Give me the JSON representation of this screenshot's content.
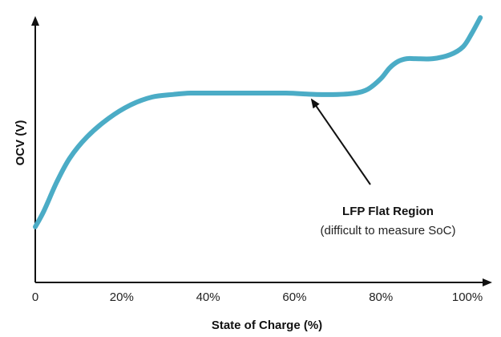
{
  "chart_data": {
    "type": "line",
    "title": "",
    "xlabel": "State of Charge (%)",
    "ylabel": "OCV (V)",
    "xlim": [
      0,
      105
    ],
    "ylim": [
      0,
      100
    ],
    "x_ticks": [
      {
        "value": 0,
        "label": "0"
      },
      {
        "value": 20,
        "label": "20%"
      },
      {
        "value": 40,
        "label": "40%"
      },
      {
        "value": 60,
        "label": "60%"
      },
      {
        "value": 80,
        "label": "80%"
      },
      {
        "value": 100,
        "label": "100%"
      }
    ],
    "y_ticks_shown": false,
    "grid": false,
    "series": [
      {
        "color": "#4bacc6",
        "x": [
          0,
          2,
          5,
          8,
          12,
          17,
          22,
          27,
          32,
          36,
          42,
          50,
          58,
          65,
          70,
          74,
          77,
          80,
          82,
          84,
          86,
          88,
          92,
          96,
          99,
          101,
          103
        ],
        "y": [
          21,
          27,
          38,
          47,
          55,
          62,
          67,
          70,
          71,
          71.5,
          71.5,
          71.5,
          71.5,
          71,
          71,
          71.5,
          73,
          77,
          81,
          83.5,
          84.5,
          84.5,
          84.5,
          86,
          89,
          94,
          100
        ]
      }
    ],
    "annotation": {
      "title": "LFP Flat Region",
      "subtitle": "(difficult to measure SoC)",
      "arrow_target": {
        "x": 64,
        "y": 69
      }
    }
  }
}
